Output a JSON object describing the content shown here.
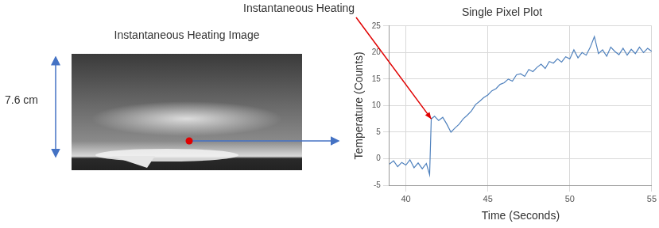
{
  "chart_data": {
    "type": "line",
    "title": "Single Pixel Plot",
    "x_label": "Time (Seconds)",
    "y_label": "Temperature (Counts)",
    "x": [
      39.0,
      39.25,
      39.5,
      39.75,
      40.0,
      40.25,
      40.5,
      40.75,
      41.0,
      41.25,
      41.45,
      41.55,
      41.75,
      42.0,
      42.25,
      42.5,
      42.75,
      43.0,
      43.25,
      43.5,
      43.75,
      44.0,
      44.25,
      44.5,
      44.75,
      45.0,
      45.25,
      45.5,
      45.75,
      46.0,
      46.25,
      46.5,
      46.75,
      47.0,
      47.25,
      47.5,
      47.75,
      48.0,
      48.25,
      48.5,
      48.75,
      49.0,
      49.25,
      49.5,
      49.75,
      50.0,
      50.25,
      50.5,
      50.75,
      51.0,
      51.25,
      51.5,
      51.75,
      52.0,
      52.25,
      52.5,
      52.75,
      53.0,
      53.25,
      53.5,
      53.75,
      54.0,
      54.25,
      54.5,
      54.75,
      55.0
    ],
    "values": [
      -1.0,
      -0.4,
      -1.5,
      -0.7,
      -1.2,
      -0.2,
      -1.7,
      -0.8,
      -1.9,
      -0.9,
      -3.0,
      7.5,
      8.0,
      7.2,
      7.8,
      6.5,
      5.0,
      5.8,
      6.5,
      7.5,
      8.2,
      9.0,
      10.2,
      10.8,
      11.5,
      12.0,
      12.8,
      13.2,
      14.0,
      14.3,
      15.0,
      14.6,
      15.8,
      16.0,
      15.5,
      16.8,
      16.4,
      17.2,
      17.8,
      17.0,
      18.3,
      18.0,
      18.8,
      18.2,
      19.2,
      18.8,
      20.5,
      19.0,
      20.0,
      19.5,
      21.0,
      23.0,
      19.8,
      20.5,
      19.3,
      21.0,
      20.2,
      19.6,
      20.8,
      19.5,
      20.6,
      19.8,
      21.0,
      20.0,
      20.8,
      20.2
    ],
    "color": "#4f81bd",
    "xlim": [
      39,
      55
    ],
    "xticks": [
      40,
      45,
      50,
      55
    ],
    "ylim": [
      -5,
      25
    ],
    "yticks": [
      -5,
      0,
      5,
      10,
      15,
      20,
      25
    ],
    "grid": true,
    "annotation": {
      "text": "Instantaneous Heating",
      "x": 41.55,
      "y": 7.5
    }
  },
  "image_panel": {
    "title": "Instantaneous Heating Image",
    "scale_label": "7.6 cm"
  }
}
